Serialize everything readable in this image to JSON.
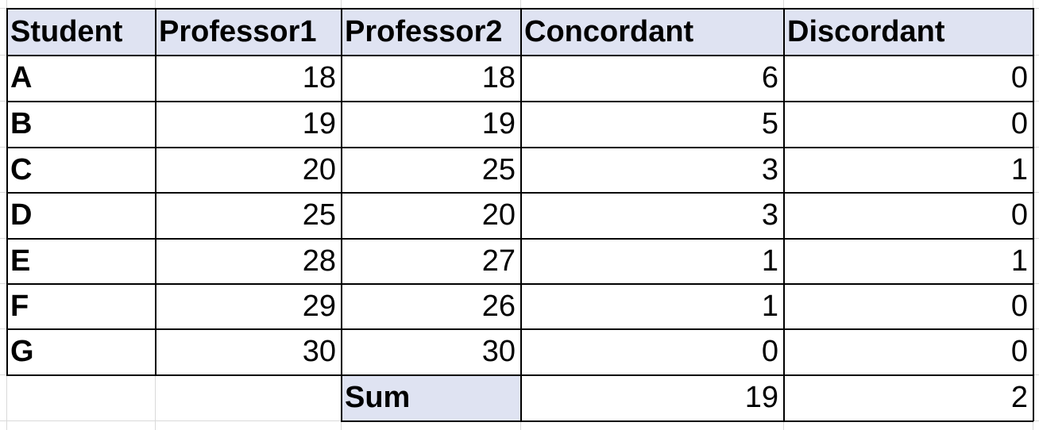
{
  "table": {
    "headers": [
      "Student",
      "Professor1",
      "Professor2",
      "Concordant",
      "Discordant"
    ],
    "rows": [
      [
        "A",
        "18",
        "18",
        "6",
        "0"
      ],
      [
        "B",
        "19",
        "19",
        "5",
        "0"
      ],
      [
        "C",
        "20",
        "25",
        "3",
        "1"
      ],
      [
        "D",
        "25",
        "20",
        "3",
        "0"
      ],
      [
        "E",
        "28",
        "27",
        "1",
        "1"
      ],
      [
        "F",
        "29",
        "26",
        "1",
        "0"
      ],
      [
        "G",
        "30",
        "30",
        "0",
        "0"
      ]
    ],
    "sum_row": {
      "label": "Sum",
      "concordant": "19",
      "discordant": "2"
    }
  },
  "colors": {
    "header_fill": "#dfe3f2",
    "gridline": "#d9d9d9",
    "border": "#000000"
  }
}
